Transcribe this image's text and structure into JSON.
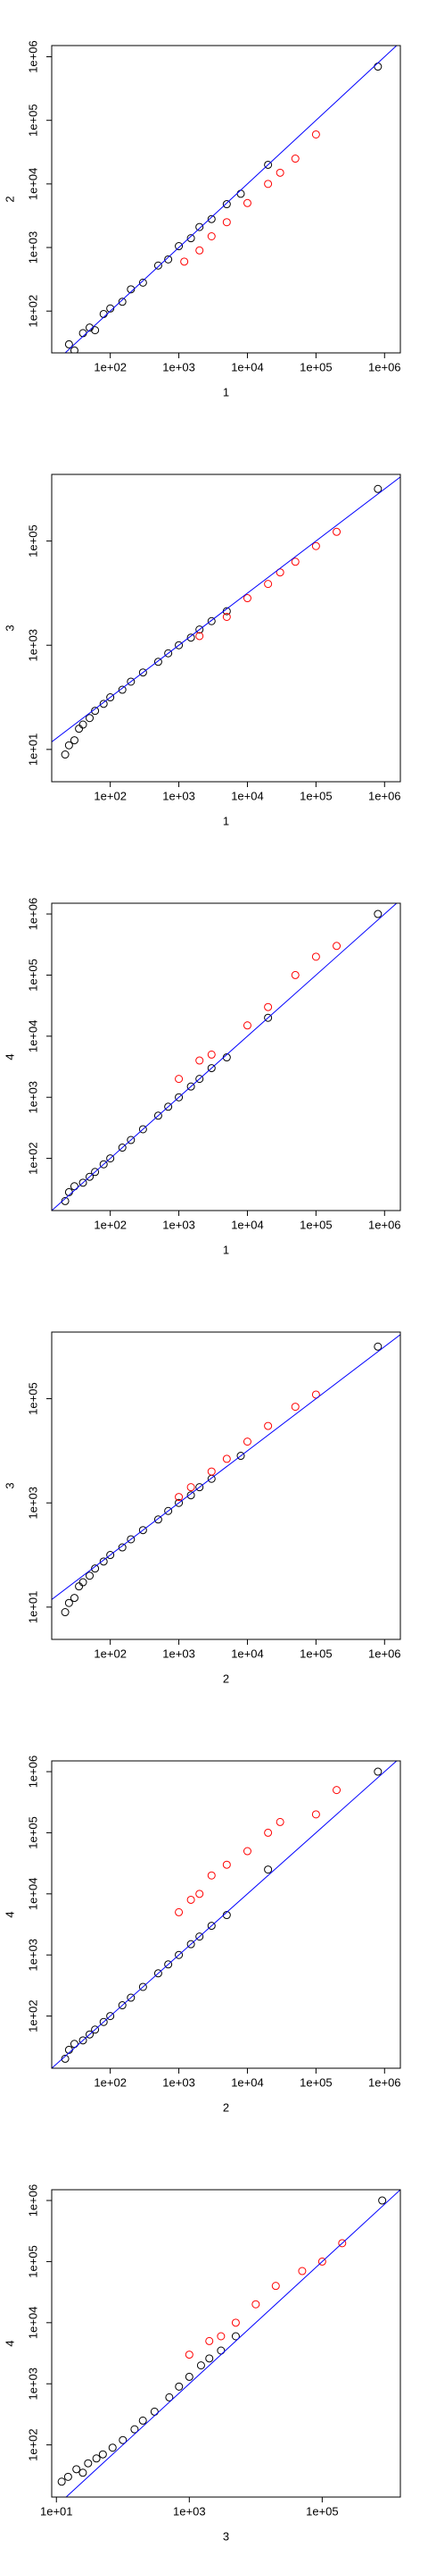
{
  "chart_data": [
    {
      "type": "scatter",
      "xlabel": "1",
      "ylabel": "2",
      "log_x": true,
      "log_y": true,
      "diagonal_color": "#0000ff",
      "xlim": [
        14,
        1700000
      ],
      "ylim": [
        22,
        1500000
      ],
      "xticks": [
        {
          "value": 100,
          "label": "1e+02"
        },
        {
          "value": 1000,
          "label": "1e+03"
        },
        {
          "value": 10000,
          "label": "1e+04"
        },
        {
          "value": 100000,
          "label": "1e+05"
        },
        {
          "value": 1000000,
          "label": "1e+06"
        }
      ],
      "yticks": [
        {
          "value": 100,
          "label": "1e+02"
        },
        {
          "value": 1000,
          "label": "1e+03"
        },
        {
          "value": 10000,
          "label": "1e+04"
        },
        {
          "value": 100000,
          "label": "1e+05"
        },
        {
          "value": 1000000,
          "label": "1e+06"
        }
      ],
      "series": [
        {
          "color": "#000000",
          "x": [
            25,
            30,
            40,
            50,
            60,
            80,
            100,
            150,
            200,
            300,
            500,
            700,
            1000,
            1500,
            2000,
            3000,
            5000,
            8000,
            20000,
            800000
          ],
          "values": [
            30,
            24,
            45,
            55,
            50,
            90,
            110,
            140,
            220,
            280,
            520,
            650,
            1050,
            1400,
            2100,
            2800,
            4800,
            7000,
            20000,
            700000
          ]
        },
        {
          "color": "#ff0000",
          "x": [
            1200,
            2000,
            3000,
            5000,
            10000,
            20000,
            30000,
            50000,
            100000
          ],
          "values": [
            600,
            900,
            1500,
            2500,
            5000,
            10000,
            15000,
            25000,
            60000
          ]
        }
      ]
    },
    {
      "type": "scatter",
      "xlabel": "1",
      "ylabel": "3",
      "log_x": true,
      "log_y": true,
      "diagonal_color": "#0000ff",
      "xlim": [
        14,
        1700000
      ],
      "ylim": [
        2.4,
        1900000
      ],
      "xticks": [
        {
          "value": 100,
          "label": "1e+02"
        },
        {
          "value": 1000,
          "label": "1e+03"
        },
        {
          "value": 10000,
          "label": "1e+04"
        },
        {
          "value": 100000,
          "label": "1e+05"
        },
        {
          "value": 1000000,
          "label": "1e+06"
        }
      ],
      "yticks": [
        {
          "value": 10,
          "label": "1e+01"
        },
        {
          "value": 1000,
          "label": "1e+03"
        },
        {
          "value": 100000,
          "label": "1e+05"
        }
      ],
      "series": [
        {
          "color": "#000000",
          "x": [
            22,
            25,
            30,
            35,
            40,
            50,
            60,
            80,
            100,
            150,
            200,
            300,
            500,
            700,
            1000,
            1500,
            2000,
            3000,
            5000,
            800000
          ],
          "values": [
            8,
            12,
            15,
            25,
            30,
            40,
            55,
            75,
            100,
            140,
            200,
            300,
            480,
            700,
            1000,
            1400,
            2000,
            2900,
            4500,
            1000000
          ]
        },
        {
          "color": "#ff0000",
          "x": [
            2000,
            5000,
            10000,
            20000,
            30000,
            50000,
            100000,
            200000
          ],
          "values": [
            1500,
            3500,
            8000,
            15000,
            25000,
            40000,
            80000,
            150000
          ]
        }
      ]
    },
    {
      "type": "scatter",
      "xlabel": "1",
      "ylabel": "4",
      "log_x": true,
      "log_y": true,
      "diagonal_color": "#0000ff",
      "xlim": [
        14,
        1700000
      ],
      "ylim": [
        14,
        1500000
      ],
      "xticks": [
        {
          "value": 100,
          "label": "1e+02"
        },
        {
          "value": 1000,
          "label": "1e+03"
        },
        {
          "value": 10000,
          "label": "1e+04"
        },
        {
          "value": 100000,
          "label": "1e+05"
        },
        {
          "value": 1000000,
          "label": "1e+06"
        }
      ],
      "yticks": [
        {
          "value": 100,
          "label": "1e+02"
        },
        {
          "value": 1000,
          "label": "1e+03"
        },
        {
          "value": 10000,
          "label": "1e+04"
        },
        {
          "value": 100000,
          "label": "1e+05"
        },
        {
          "value": 1000000,
          "label": "1e+06"
        }
      ],
      "series": [
        {
          "color": "#000000",
          "x": [
            22,
            25,
            30,
            40,
            50,
            60,
            80,
            100,
            150,
            200,
            300,
            500,
            700,
            1000,
            1500,
            2000,
            3000,
            5000,
            20000,
            800000
          ],
          "values": [
            20,
            28,
            35,
            40,
            50,
            60,
            80,
            100,
            150,
            200,
            300,
            500,
            700,
            1000,
            1500,
            2000,
            3000,
            4500,
            20000,
            1000000
          ]
        },
        {
          "color": "#ff0000",
          "x": [
            1000,
            2000,
            3000,
            10000,
            20000,
            50000,
            100000,
            200000
          ],
          "values": [
            2000,
            4000,
            5000,
            15000,
            30000,
            100000,
            200000,
            300000
          ]
        }
      ]
    },
    {
      "type": "scatter",
      "xlabel": "2",
      "ylabel": "3",
      "log_x": true,
      "log_y": true,
      "diagonal_color": "#0000ff",
      "xlim": [
        14,
        1700000
      ],
      "ylim": [
        2.4,
        1900000
      ],
      "xticks": [
        {
          "value": 100,
          "label": "1e+02"
        },
        {
          "value": 1000,
          "label": "1e+03"
        },
        {
          "value": 10000,
          "label": "1e+04"
        },
        {
          "value": 100000,
          "label": "1e+05"
        },
        {
          "value": 1000000,
          "label": "1e+06"
        }
      ],
      "yticks": [
        {
          "value": 10,
          "label": "1e+01"
        },
        {
          "value": 1000,
          "label": "1e+03"
        },
        {
          "value": 100000,
          "label": "1e+05"
        }
      ],
      "series": [
        {
          "color": "#000000",
          "x": [
            22,
            25,
            30,
            35,
            40,
            50,
            60,
            80,
            100,
            150,
            200,
            300,
            500,
            700,
            1000,
            1500,
            2000,
            3000,
            8000,
            800000
          ],
          "values": [
            8,
            12,
            15,
            25,
            30,
            40,
            55,
            75,
            100,
            140,
            200,
            300,
            480,
            700,
            1000,
            1400,
            2000,
            2900,
            8000,
            1000000
          ]
        },
        {
          "color": "#ff0000",
          "x": [
            1000,
            1500,
            3000,
            5000,
            10000,
            20000,
            50000,
            100000
          ],
          "values": [
            1300,
            2000,
            4000,
            7000,
            15000,
            30000,
            70000,
            120000
          ]
        }
      ]
    },
    {
      "type": "scatter",
      "xlabel": "2",
      "ylabel": "4",
      "log_x": true,
      "log_y": true,
      "diagonal_color": "#0000ff",
      "xlim": [
        14,
        1700000
      ],
      "ylim": [
        14,
        1500000
      ],
      "xticks": [
        {
          "value": 100,
          "label": "1e+02"
        },
        {
          "value": 1000,
          "label": "1e+03"
        },
        {
          "value": 10000,
          "label": "1e+04"
        },
        {
          "value": 100000,
          "label": "1e+05"
        },
        {
          "value": 1000000,
          "label": "1e+06"
        }
      ],
      "yticks": [
        {
          "value": 100,
          "label": "1e+02"
        },
        {
          "value": 1000,
          "label": "1e+03"
        },
        {
          "value": 10000,
          "label": "1e+04"
        },
        {
          "value": 100000,
          "label": "1e+05"
        },
        {
          "value": 1000000,
          "label": "1e+06"
        }
      ],
      "series": [
        {
          "color": "#000000",
          "x": [
            22,
            25,
            30,
            40,
            50,
            60,
            80,
            100,
            150,
            200,
            300,
            500,
            700,
            1000,
            1500,
            2000,
            3000,
            5000,
            20000,
            800000
          ],
          "values": [
            20,
            28,
            35,
            40,
            50,
            60,
            80,
            100,
            150,
            200,
            300,
            500,
            700,
            1000,
            1500,
            2000,
            3000,
            4500,
            25000,
            1000000
          ]
        },
        {
          "color": "#ff0000",
          "x": [
            1000,
            1500,
            2000,
            3000,
            5000,
            10000,
            20000,
            30000,
            100000,
            200000
          ],
          "values": [
            5000,
            8000,
            10000,
            20000,
            30000,
            50000,
            100000,
            150000,
            200000,
            500000
          ]
        }
      ]
    },
    {
      "type": "scatter",
      "xlabel": "3",
      "ylabel": "4",
      "log_x": true,
      "log_y": true,
      "diagonal_color": "#0000ff",
      "xlim": [
        8.5,
        1500000
      ],
      "ylim": [
        14,
        1500000
      ],
      "xticks": [
        {
          "value": 10,
          "label": "1e+01"
        },
        {
          "value": 1000,
          "label": "1e+03"
        },
        {
          "value": 100000,
          "label": "1e+05"
        }
      ],
      "yticks": [
        {
          "value": 100,
          "label": "1e+02"
        },
        {
          "value": 1000,
          "label": "1e+03"
        },
        {
          "value": 10000,
          "label": "1e+04"
        },
        {
          "value": 100000,
          "label": "1e+05"
        },
        {
          "value": 1000000,
          "label": "1e+06"
        }
      ],
      "series": [
        {
          "color": "#000000",
          "x": [
            12,
            15,
            20,
            25,
            30,
            40,
            50,
            70,
            100,
            150,
            200,
            300,
            500,
            700,
            1000,
            1500,
            2000,
            3000,
            5000,
            800000
          ],
          "values": [
            25,
            30,
            40,
            35,
            50,
            60,
            70,
            90,
            120,
            180,
            250,
            350,
            600,
            900,
            1300,
            2000,
            2600,
            3500,
            6000,
            1000000
          ]
        },
        {
          "color": "#ff0000",
          "x": [
            1000,
            2000,
            3000,
            5000,
            10000,
            20000,
            50000,
            100000,
            200000
          ],
          "values": [
            3000,
            5000,
            6000,
            10000,
            20000,
            40000,
            70000,
            100000,
            200000
          ]
        }
      ]
    }
  ]
}
